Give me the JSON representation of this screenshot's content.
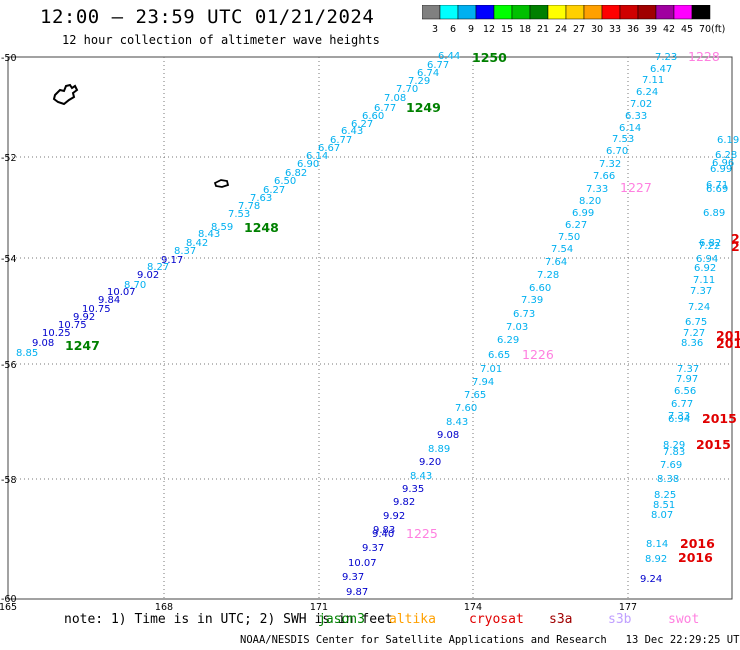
{
  "header": {
    "title": "12:00 — 23:59 UTC 01/21/2024",
    "subtitle": "12 hour collection of altimeter wave heights"
  },
  "legend": {
    "unit": "(ft)",
    "bins": [
      {
        "label": "3",
        "color": "#808080"
      },
      {
        "label": "6",
        "color": "#00ffff"
      },
      {
        "label": "9",
        "color": "#00b0f0"
      },
      {
        "label": "12",
        "color": "#0000ff"
      },
      {
        "label": "15",
        "color": "#00ff00"
      },
      {
        "label": "18",
        "color": "#00c000"
      },
      {
        "label": "21",
        "color": "#008000"
      },
      {
        "label": "24",
        "color": "#ffff00"
      },
      {
        "label": "27",
        "color": "#ffd000"
      },
      {
        "label": "30",
        "color": "#ffa000"
      },
      {
        "label": "33",
        "color": "#ff0000"
      },
      {
        "label": "36",
        "color": "#d00000"
      },
      {
        "label": "39",
        "color": "#a00000"
      },
      {
        "label": "42",
        "color": "#a000a0"
      },
      {
        "label": "45",
        "color": "#ff00ff"
      },
      {
        "label": "70",
        "color": "#000000"
      }
    ]
  },
  "map": {
    "lat_labels": [
      "-50",
      "-52",
      "-54",
      "-56",
      "-58",
      "-60"
    ],
    "lon_labels": [
      "165",
      "168",
      "171",
      "174",
      "177"
    ]
  },
  "tracks": [
    {
      "pass": "1247-1250",
      "labels": [
        {
          "text": "1247",
          "color": "#008000"
        },
        {
          "text": "1248",
          "color": "#008000"
        },
        {
          "text": "1249",
          "color": "#008000"
        },
        {
          "text": "1250",
          "color": "#008000"
        }
      ],
      "values": [
        {
          "v": "8.85",
          "color": "#00b0f0"
        },
        {
          "v": "9.08",
          "color": "#0000cc"
        },
        {
          "v": "10.25",
          "color": "#0000cc"
        },
        {
          "v": "10.75",
          "color": "#0000cc"
        },
        {
          "v": "9.92",
          "color": "#0000cc"
        },
        {
          "v": "10.75",
          "color": "#0000cc"
        },
        {
          "v": "9.84",
          "color": "#0000cc"
        },
        {
          "v": "10.07",
          "color": "#0000cc"
        },
        {
          "v": "8.70",
          "color": "#00b0f0"
        },
        {
          "v": "9.02",
          "color": "#0000cc"
        },
        {
          "v": "8.27",
          "color": "#00b0f0"
        },
        {
          "v": "9.17",
          "color": "#0000cc"
        },
        {
          "v": "8.37",
          "color": "#00b0f0"
        },
        {
          "v": "8.42",
          "color": "#00b0f0"
        },
        {
          "v": "8.43",
          "color": "#00b0f0"
        },
        {
          "v": "8.59",
          "color": "#00b0f0"
        },
        {
          "v": "7.53",
          "color": "#00b0f0"
        },
        {
          "v": "7.78",
          "color": "#00b0f0"
        },
        {
          "v": "7.63",
          "color": "#00b0f0"
        },
        {
          "v": "6.27",
          "color": "#00b0f0"
        },
        {
          "v": "6.50",
          "color": "#00b0f0"
        },
        {
          "v": "6.82",
          "color": "#00b0f0"
        },
        {
          "v": "6.90",
          "color": "#00b0f0"
        },
        {
          "v": "6.14",
          "color": "#00b0f0"
        },
        {
          "v": "6.67",
          "color": "#00b0f0"
        },
        {
          "v": "6.77",
          "color": "#00b0f0"
        },
        {
          "v": "6.43",
          "color": "#00b0f0"
        },
        {
          "v": "6.27",
          "color": "#00b0f0"
        },
        {
          "v": "6.60",
          "color": "#00b0f0"
        },
        {
          "v": "6.77",
          "color": "#00b0f0"
        },
        {
          "v": "7.08",
          "color": "#00b0f0"
        },
        {
          "v": "7.70",
          "color": "#00b0f0"
        },
        {
          "v": "7.29",
          "color": "#00b0f0"
        },
        {
          "v": "6.74",
          "color": "#00b0f0"
        },
        {
          "v": "6.77",
          "color": "#00b0f0"
        },
        {
          "v": "6.44",
          "color": "#00b0f0"
        }
      ]
    },
    {
      "pass": "1225-1228",
      "labels": [
        {
          "text": "1225",
          "color": "#ff80e0"
        },
        {
          "text": "1226",
          "color": "#ff80e0"
        },
        {
          "text": "1227",
          "color": "#ff80e0"
        },
        {
          "text": "1228",
          "color": "#ff80e0"
        }
      ],
      "values": [
        {
          "v": "9.87",
          "color": "#0000cc"
        },
        {
          "v": "9.37",
          "color": "#0000cc"
        },
        {
          "v": "10.07",
          "color": "#0000cc"
        },
        {
          "v": "9.37",
          "color": "#0000cc"
        },
        {
          "v": "9.40",
          "color": "#0000cc"
        },
        {
          "v": "9.83",
          "color": "#0000cc"
        },
        {
          "v": "9.92",
          "color": "#0000cc"
        },
        {
          "v": "9.82",
          "color": "#0000cc"
        },
        {
          "v": "9.35",
          "color": "#0000cc"
        },
        {
          "v": "8.43",
          "color": "#00b0f0"
        },
        {
          "v": "9.20",
          "color": "#0000cc"
        },
        {
          "v": "8.89",
          "color": "#00b0f0"
        },
        {
          "v": "9.08",
          "color": "#0000cc"
        },
        {
          "v": "8.43",
          "color": "#00b0f0"
        },
        {
          "v": "7.60",
          "color": "#00b0f0"
        },
        {
          "v": "7.65",
          "color": "#00b0f0"
        },
        {
          "v": "7.94",
          "color": "#00b0f0"
        },
        {
          "v": "7.01",
          "color": "#00b0f0"
        },
        {
          "v": "6.65",
          "color": "#00b0f0"
        },
        {
          "v": "6.29",
          "color": "#00b0f0"
        },
        {
          "v": "7.03",
          "color": "#00b0f0"
        },
        {
          "v": "6.73",
          "color": "#00b0f0"
        },
        {
          "v": "7.39",
          "color": "#00b0f0"
        },
        {
          "v": "6.60",
          "color": "#00b0f0"
        },
        {
          "v": "7.28",
          "color": "#00b0f0"
        },
        {
          "v": "7.64",
          "color": "#00b0f0"
        },
        {
          "v": "7.54",
          "color": "#00b0f0"
        },
        {
          "v": "7.50",
          "color": "#00b0f0"
        },
        {
          "v": "6.27",
          "color": "#00b0f0"
        },
        {
          "v": "6.99",
          "color": "#00b0f0"
        },
        {
          "v": "8.20",
          "color": "#00b0f0"
        },
        {
          "v": "7.33",
          "color": "#00b0f0"
        },
        {
          "v": "7.66",
          "color": "#00b0f0"
        },
        {
          "v": "7.32",
          "color": "#00b0f0"
        },
        {
          "v": "6.70",
          "color": "#00b0f0"
        },
        {
          "v": "7.53",
          "color": "#00b0f0"
        },
        {
          "v": "6.14",
          "color": "#00b0f0"
        },
        {
          "v": "6.33",
          "color": "#00b0f0"
        },
        {
          "v": "7.02",
          "color": "#00b0f0"
        },
        {
          "v": "6.24",
          "color": "#00b0f0"
        },
        {
          "v": "7.11",
          "color": "#00b0f0"
        },
        {
          "v": "6.47",
          "color": "#00b0f0"
        },
        {
          "v": "7.23",
          "color": "#00b0f0"
        }
      ]
    },
    {
      "pass": "2015-2016",
      "labels": [
        {
          "text": "2015",
          "color": "#e00000"
        },
        {
          "text": "2015",
          "color": "#e00000"
        },
        {
          "text": "2016",
          "color": "#e00000"
        },
        {
          "text": "2016",
          "color": "#e00000"
        },
        {
          "text": "201",
          "color": "#e00000"
        },
        {
          "text": "201",
          "color": "#e00000"
        },
        {
          "text": "2",
          "color": "#e00000"
        },
        {
          "text": "2",
          "color": "#e00000"
        }
      ],
      "values": [
        {
          "v": "9.24",
          "color": "#0000cc"
        },
        {
          "v": "8.92",
          "color": "#00b0f0"
        },
        {
          "v": "8.14",
          "color": "#00b0f0"
        },
        {
          "v": "8.07",
          "color": "#00b0f0"
        },
        {
          "v": "8.51",
          "color": "#00b0f0"
        },
        {
          "v": "8.25",
          "color": "#00b0f0"
        },
        {
          "v": "8.38",
          "color": "#00b0f0"
        },
        {
          "v": "7.69",
          "color": "#00b0f0"
        },
        {
          "v": "7.83",
          "color": "#00b0f0"
        },
        {
          "v": "8.29",
          "color": "#00b0f0"
        },
        {
          "v": "6.94",
          "color": "#00b0f0"
        },
        {
          "v": "7.33",
          "color": "#00b0f0"
        },
        {
          "v": "6.77",
          "color": "#00b0f0"
        },
        {
          "v": "6.56",
          "color": "#00b0f0"
        },
        {
          "v": "7.97",
          "color": "#00b0f0"
        },
        {
          "v": "7.37",
          "color": "#00b0f0"
        },
        {
          "v": "8.36",
          "color": "#00b0f0"
        },
        {
          "v": "7.27",
          "color": "#00b0f0"
        },
        {
          "v": "6.75",
          "color": "#00b0f0"
        },
        {
          "v": "7.24",
          "color": "#00b0f0"
        },
        {
          "v": "7.37",
          "color": "#00b0f0"
        },
        {
          "v": "7.11",
          "color": "#00b0f0"
        },
        {
          "v": "6.92",
          "color": "#00b0f0"
        },
        {
          "v": "6.94",
          "color": "#00b0f0"
        },
        {
          "v": "7.22",
          "color": "#00b0f0"
        },
        {
          "v": "6.82",
          "color": "#00b0f0"
        },
        {
          "v": "6.89",
          "color": "#00b0f0"
        },
        {
          "v": "6.69",
          "color": "#00b0f0"
        },
        {
          "v": "6.71",
          "color": "#00b0f0"
        },
        {
          "v": "6.99",
          "color": "#00b0f0"
        },
        {
          "v": "6.96",
          "color": "#00b0f0"
        },
        {
          "v": "6.28",
          "color": "#00b0f0"
        },
        {
          "v": "6.19",
          "color": "#00b0f0"
        }
      ]
    }
  ],
  "footer": {
    "note": "note:  1) Time is in UTC; 2) SWH is in feet",
    "satellites": [
      {
        "name": "jason3",
        "color": "#008000"
      },
      {
        "name": "altika",
        "color": "#ffa000"
      },
      {
        "name": "cryosat",
        "color": "#e00000"
      },
      {
        "name": "s3a",
        "color": "#a00000"
      },
      {
        "name": "s3b",
        "color": "#c0a0ff"
      },
      {
        "name": "swot",
        "color": "#ff80e0"
      }
    ],
    "credit": "NOAA/NESDIS Center for Satellite Applications and Research",
    "timestamp": "13 Dec 22:29:25 UTC 2024"
  }
}
